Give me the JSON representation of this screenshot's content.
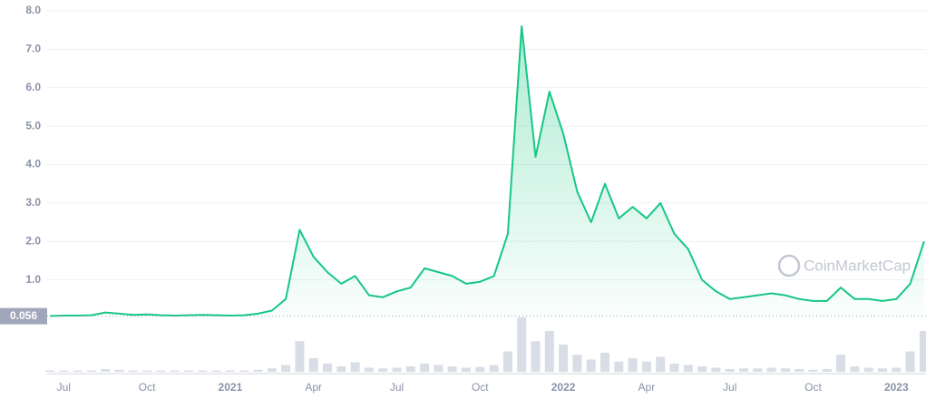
{
  "chart_data": {
    "type": "line",
    "watermark": "CoinMarketCap",
    "color": "#16c784",
    "categories": [
      null,
      "Jul",
      null,
      null,
      null,
      null,
      null,
      "Oct",
      null,
      null,
      null,
      null,
      null,
      "2021",
      null,
      null,
      null,
      null,
      null,
      "Apr",
      null,
      null,
      null,
      null,
      null,
      "Jul",
      null,
      null,
      null,
      null,
      null,
      "Oct",
      null,
      null,
      null,
      null,
      null,
      "2022",
      null,
      null,
      null,
      null,
      null,
      "Apr",
      null,
      null,
      null,
      null,
      null,
      "Jul",
      null,
      null,
      null,
      null,
      null,
      "Oct",
      null,
      null,
      null,
      null,
      null,
      "2023",
      null,
      null
    ],
    "values": [
      0.06,
      0.07,
      0.07,
      0.08,
      0.15,
      0.12,
      0.09,
      0.1,
      0.08,
      0.07,
      0.08,
      0.09,
      0.08,
      0.07,
      0.08,
      0.12,
      0.2,
      0.5,
      2.3,
      1.6,
      1.2,
      0.9,
      1.1,
      0.6,
      0.55,
      0.7,
      0.8,
      1.3,
      1.2,
      1.1,
      0.9,
      0.95,
      1.1,
      2.2,
      7.6,
      4.2,
      5.9,
      4.8,
      3.3,
      2.5,
      3.5,
      2.6,
      2.9,
      2.6,
      3.0,
      2.2,
      1.8,
      1.0,
      0.7,
      0.5,
      0.55,
      0.6,
      0.65,
      0.6,
      0.5,
      0.45,
      0.45,
      0.8,
      0.5,
      0.5,
      0.45,
      0.5,
      0.9,
      2.0
    ],
    "volume": [
      2,
      2,
      2,
      2,
      4,
      3,
      2,
      2,
      2,
      2,
      2,
      2,
      2,
      2,
      2,
      3,
      5,
      10,
      45,
      20,
      12,
      8,
      14,
      6,
      5,
      6,
      8,
      12,
      10,
      8,
      6,
      7,
      10,
      30,
      80,
      45,
      60,
      40,
      25,
      18,
      28,
      15,
      20,
      15,
      22,
      12,
      10,
      8,
      6,
      4,
      5,
      5,
      6,
      5,
      4,
      3,
      4,
      25,
      8,
      6,
      5,
      6,
      30,
      60
    ],
    "ylim": [
      0,
      8
    ],
    "yticks": [
      {
        "value": 1,
        "label": "1.0"
      },
      {
        "value": 2,
        "label": "2.0"
      },
      {
        "value": 3,
        "label": "3.0"
      },
      {
        "value": 4,
        "label": "4.0"
      },
      {
        "value": 5,
        "label": "5.0"
      },
      {
        "value": 6,
        "label": "6.0"
      },
      {
        "value": 7,
        "label": "7.0"
      },
      {
        "value": 8,
        "label": "8.0"
      }
    ],
    "reference_value": 0.056,
    "grid": true
  }
}
